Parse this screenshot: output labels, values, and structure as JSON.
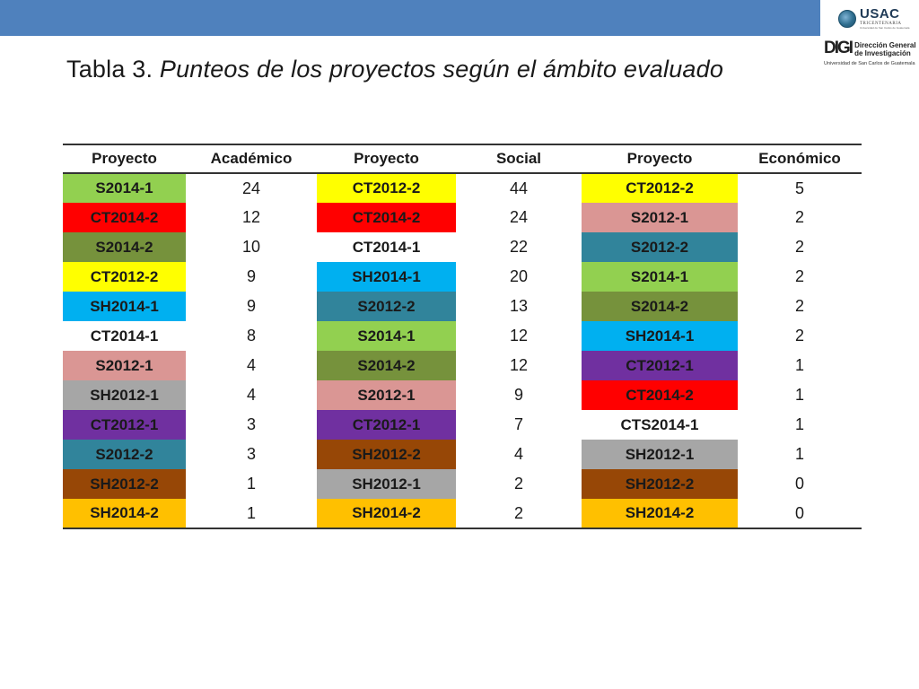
{
  "header": {
    "title_prefix": "Tabla 3.",
    "title_italic": "Punteos de los proyectos según el ámbito evaluado"
  },
  "logos": {
    "usac": {
      "name": "USAC",
      "subtitle": "TRICENTENARIA",
      "caption": "Universidad de San Carlos de Guatemala"
    },
    "digi": {
      "mark": "DIGI",
      "line1": "Dirección General",
      "line2": "de Investigación",
      "university": "Universidad de San Carlos de Guatemala"
    }
  },
  "colors": {
    "topbar": "#4f81bd",
    "S2014-1": "#92d050",
    "CT2014-2": "#ff0000",
    "S2014-2": "#76923c",
    "CT2012-2": "#ffff00",
    "SH2014-1": "#00b0f0",
    "CT2014-1": "#ffffff",
    "S2012-1": "#da9694",
    "SH2012-1": "#a6a6a6",
    "CT2012-1": "#7030a0",
    "S2012-2": "#31849b",
    "SH2012-2": "#974706",
    "SH2014-2": "#ffc000",
    "CTS2014-1": "#ffffff"
  },
  "table": {
    "headers": [
      "Proyecto",
      "Académico",
      "Proyecto",
      "Social",
      "Proyecto",
      "Económico"
    ],
    "rows": [
      [
        "S2014-1",
        "24",
        "CT2012-2",
        "44",
        "CT2012-2",
        "5"
      ],
      [
        "CT2014-2",
        "12",
        "CT2014-2",
        "24",
        "S2012-1",
        "2"
      ],
      [
        "S2014-2",
        "10",
        "CT2014-1",
        "22",
        "S2012-2",
        "2"
      ],
      [
        "CT2012-2",
        "9",
        "SH2014-1",
        "20",
        "S2014-1",
        "2"
      ],
      [
        "SH2014-1",
        "9",
        "S2012-2",
        "13",
        "S2014-2",
        "2"
      ],
      [
        "CT2014-1",
        "8",
        "S2014-1",
        "12",
        "SH2014-1",
        "2"
      ],
      [
        "S2012-1",
        "4",
        "S2014-2",
        "12",
        "CT2012-1",
        "1"
      ],
      [
        "SH2012-1",
        "4",
        "S2012-1",
        "9",
        "CT2014-2",
        "1"
      ],
      [
        "CT2012-1",
        "3",
        "CT2012-1",
        "7",
        "CTS2014-1",
        "1"
      ],
      [
        "S2012-2",
        "3",
        "SH2012-2",
        "4",
        "SH2012-1",
        "1"
      ],
      [
        "SH2012-2",
        "1",
        "SH2012-1",
        "2",
        "SH2012-2",
        "0"
      ],
      [
        "SH2014-2",
        "1",
        "SH2014-2",
        "2",
        "SH2014-2",
        "0"
      ]
    ]
  }
}
